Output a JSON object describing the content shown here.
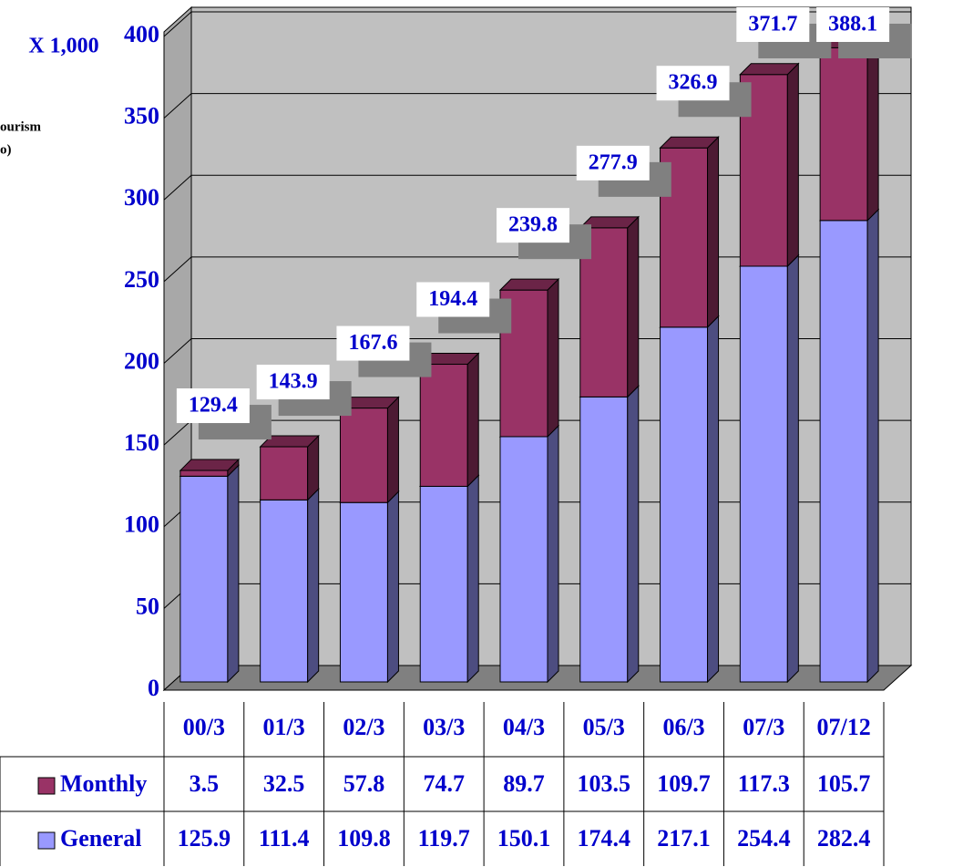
{
  "chart_data": {
    "type": "bar3d_stacked",
    "y_axis_label": "X 1,000",
    "side_texts": [
      "ourism",
      "o)"
    ],
    "categories": [
      "00/3",
      "01/3",
      "02/3",
      "03/3",
      "04/3",
      "05/3",
      "06/3",
      "07/3",
      "07/12"
    ],
    "series": [
      {
        "name": "Monthly",
        "color": "#993366",
        "values": [
          3.5,
          32.5,
          57.8,
          74.7,
          89.7,
          103.5,
          109.7,
          117.3,
          105.7
        ]
      },
      {
        "name": "General",
        "color": "#9999ff",
        "values": [
          125.9,
          111.4,
          109.8,
          119.7,
          150.1,
          174.4,
          217.1,
          254.4,
          282.4
        ]
      }
    ],
    "total_labels": [
      129.4,
      143.9,
      167.6,
      194.4,
      239.8,
      277.9,
      326.9,
      371.7,
      388.1
    ],
    "ylim": [
      0,
      400
    ],
    "yticks": [
      0,
      50,
      100,
      150,
      200,
      250,
      300,
      350,
      400
    ],
    "grid": true
  }
}
